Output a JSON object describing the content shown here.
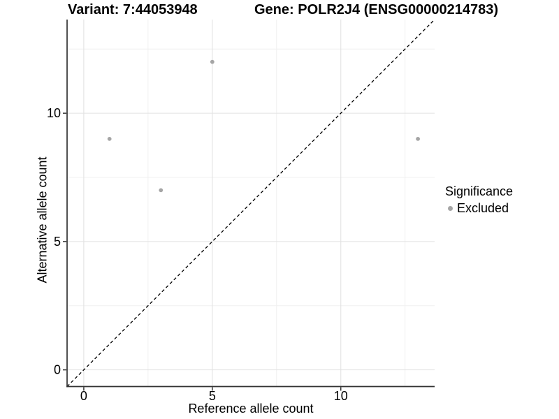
{
  "header": {
    "variant_title": "Variant: 7:44053948",
    "gene_title": "Gene: POLR2J4 (ENSG00000214783)"
  },
  "chart_data": {
    "type": "scatter",
    "xlabel": "Reference allele count",
    "ylabel": "Alternative allele count",
    "xlim": [
      -0.65,
      13.65
    ],
    "ylim": [
      -0.65,
      13.65
    ],
    "x_ticks": {
      "values": [
        0,
        5,
        10
      ],
      "labels": [
        "0",
        "5",
        "10"
      ]
    },
    "y_ticks": {
      "values": [
        0,
        5,
        10
      ],
      "labels": [
        "0",
        "5",
        "10"
      ]
    },
    "x_minor_ticks": [
      2.5,
      7.5,
      12.5
    ],
    "y_minor_ticks": [
      2.5,
      7.5,
      12.5
    ],
    "grid": "on",
    "series": [
      {
        "name": "Excluded",
        "color": "#A5A5A5",
        "points": [
          [
            1,
            9
          ],
          [
            3,
            7
          ],
          [
            5,
            12
          ],
          [
            13,
            9
          ]
        ]
      }
    ],
    "identity_line": {
      "style": "dashed",
      "color": "#000000",
      "from": [
        -0.65,
        -0.65
      ],
      "to": [
        13.65,
        13.65
      ]
    },
    "legend": {
      "title": "Significance",
      "position": "right",
      "entries": [
        {
          "label": "Excluded",
          "color": "#A5A5A5"
        }
      ]
    },
    "colors": {
      "grid_major": "#E2E2E2",
      "grid_minor": "#F0F0F0",
      "axis_line": "#333333",
      "tick_text": "#000000"
    }
  }
}
